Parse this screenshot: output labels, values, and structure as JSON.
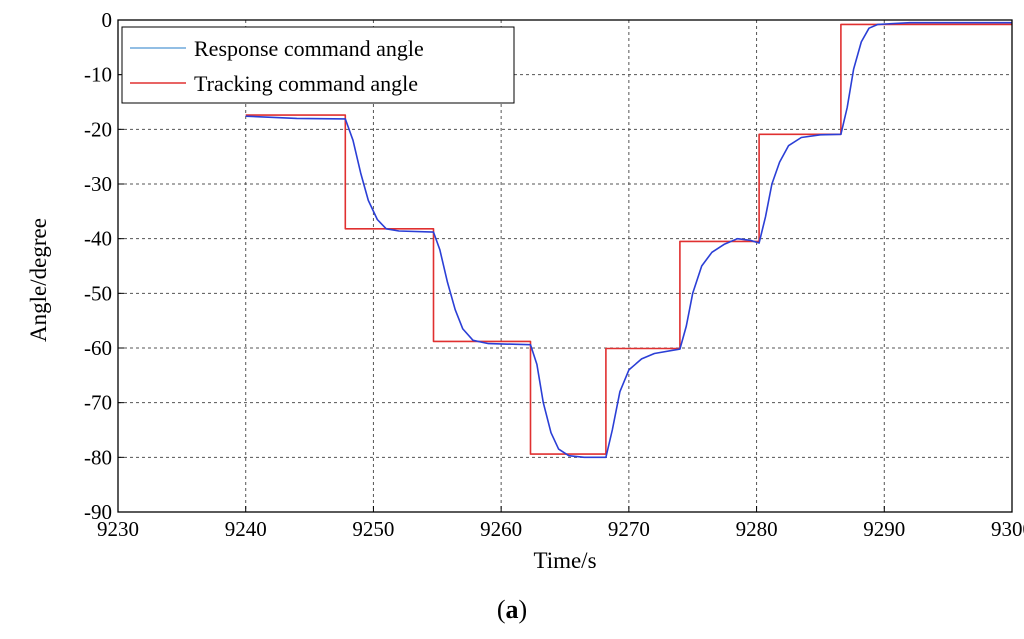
{
  "chart_data": {
    "type": "line",
    "xlabel": "Time/s",
    "ylabel": "Angle/degree",
    "xlim": [
      9230,
      9300
    ],
    "ylim": [
      -90,
      0
    ],
    "xticks": [
      9230,
      9240,
      9250,
      9260,
      9270,
      9280,
      9290,
      9300
    ],
    "yticks": [
      0,
      -10,
      -20,
      -30,
      -40,
      -50,
      -60,
      -70,
      -80,
      -90
    ],
    "grid": true,
    "legend_position": "top-left",
    "caption": "(a)",
    "series": [
      {
        "name": "Response command angle",
        "color": "#2b3fd6",
        "legend_color": "#6fa8dc",
        "points": [
          [
            9240,
            -17.6
          ],
          [
            9244,
            -18.0
          ],
          [
            9247.8,
            -18.1
          ],
          [
            9248.4,
            -22
          ],
          [
            9249,
            -28
          ],
          [
            9249.6,
            -33
          ],
          [
            9250.3,
            -36.5
          ],
          [
            9251,
            -38.2
          ],
          [
            9252,
            -38.6
          ],
          [
            9254.7,
            -38.8
          ],
          [
            9255.2,
            -42
          ],
          [
            9255.8,
            -48
          ],
          [
            9256.4,
            -53
          ],
          [
            9257,
            -56.5
          ],
          [
            9257.8,
            -58.6
          ],
          [
            9259,
            -59.2
          ],
          [
            9262.3,
            -59.4
          ],
          [
            9262.8,
            -63
          ],
          [
            9263.3,
            -70
          ],
          [
            9263.9,
            -75.5
          ],
          [
            9264.5,
            -78.5
          ],
          [
            9265.3,
            -79.7
          ],
          [
            9266.5,
            -80.0
          ],
          [
            9268.2,
            -80.0
          ],
          [
            9268.7,
            -75
          ],
          [
            9269.3,
            -68
          ],
          [
            9270,
            -64
          ],
          [
            9271,
            -62
          ],
          [
            9272,
            -61
          ],
          [
            9274,
            -60.2
          ],
          [
            9274.5,
            -56
          ],
          [
            9275,
            -50
          ],
          [
            9275.7,
            -45
          ],
          [
            9276.5,
            -42.5
          ],
          [
            9277.5,
            -41
          ],
          [
            9278.5,
            -40.0
          ],
          [
            9279.5,
            -40.3
          ],
          [
            9280.2,
            -40.8
          ],
          [
            9280.7,
            -36
          ],
          [
            9281.2,
            -30
          ],
          [
            9281.8,
            -26
          ],
          [
            9282.5,
            -23
          ],
          [
            9283.5,
            -21.5
          ],
          [
            9285,
            -21.0
          ],
          [
            9286.6,
            -20.9
          ],
          [
            9287.1,
            -16
          ],
          [
            9287.6,
            -9
          ],
          [
            9288.2,
            -4
          ],
          [
            9288.8,
            -1.5
          ],
          [
            9289.5,
            -0.8
          ],
          [
            9292,
            -0.5
          ],
          [
            9300,
            -0.5
          ]
        ]
      },
      {
        "name": "Tracking command angle",
        "color": "#e03030",
        "legend_color": "#e03030",
        "points": [
          [
            9240,
            -17.4
          ],
          [
            9247.8,
            -17.4
          ],
          [
            9247.8,
            -38.2
          ],
          [
            9254.7,
            -38.2
          ],
          [
            9254.7,
            -58.8
          ],
          [
            9262.3,
            -58.8
          ],
          [
            9262.3,
            -79.4
          ],
          [
            9268.2,
            -79.4
          ],
          [
            9268.2,
            -60.1
          ],
          [
            9274.0,
            -60.1
          ],
          [
            9274.0,
            -40.5
          ],
          [
            9280.2,
            -40.5
          ],
          [
            9280.2,
            -20.9
          ],
          [
            9286.6,
            -20.9
          ],
          [
            9286.6,
            -0.8
          ],
          [
            9300,
            -0.8
          ]
        ]
      }
    ]
  }
}
